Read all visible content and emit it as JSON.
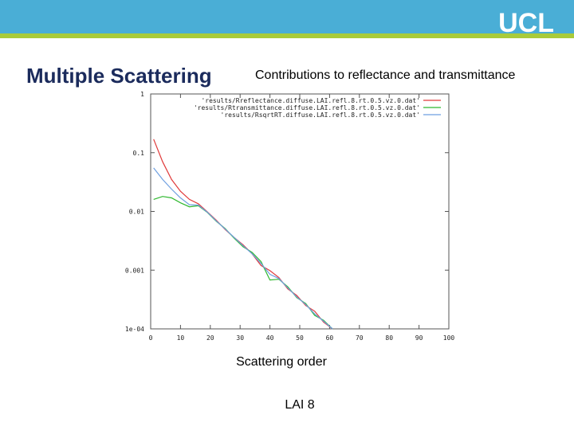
{
  "logo": "UCL",
  "chart_data": {
    "type": "line",
    "title": "Multiple Scattering",
    "subtitle": "Contributions to reflectance and transmittance",
    "x_label": "Scattering order",
    "annotation": "LAI 8",
    "log_y": true,
    "grid": false,
    "legend": "top-right",
    "xlim": [
      0,
      100
    ],
    "xticks": [
      0,
      10,
      20,
      30,
      40,
      50,
      60,
      70,
      80,
      90,
      100
    ],
    "ylim": [
      0.0001,
      1
    ],
    "yticks": [
      {
        "value": 0.0001,
        "label": "1e-04"
      },
      0.001,
      0.01,
      0.1,
      1
    ],
    "x": [
      1,
      4,
      7,
      10,
      13,
      16,
      19,
      22,
      25,
      28,
      31,
      34,
      37,
      40,
      43,
      46,
      49,
      52,
      55,
      58,
      61
    ],
    "series": [
      {
        "name": "'results/Rreflectance.diffuse.LAI.refl.8.rt.0.5.vz.0.dat'",
        "color": "#e03a3a",
        "values": [
          0.17,
          0.07,
          0.035,
          0.022,
          0.016,
          0.0135,
          0.0098,
          0.0071,
          0.0049,
          0.0036,
          0.0027,
          0.0019,
          0.0012,
          0.00098,
          0.00075,
          0.00048,
          0.00037,
          0.00025,
          0.0002,
          0.00013,
          0.0001
        ]
      },
      {
        "name": "'results/Rtransmittance.diffuse.LAI.refl.8.rt.0.5.vz.0.dat'",
        "color": "#2fb82f",
        "values": [
          0.016,
          0.018,
          0.017,
          0.014,
          0.012,
          0.0125,
          0.0096,
          0.0068,
          0.0051,
          0.0035,
          0.0025,
          0.002,
          0.0014,
          0.00068,
          0.0007,
          0.00052,
          0.00034,
          0.00027,
          0.00017,
          0.00014,
          0.0001
        ]
      },
      {
        "name": "'results/RsqrtRT.diffuse.LAI.refl.8.rt.0.5.vz.0.dat'",
        "color": "#6e9fe0",
        "values": [
          0.055,
          0.035,
          0.024,
          0.017,
          0.013,
          0.0128,
          0.0097,
          0.0069,
          0.005,
          0.0036,
          0.0026,
          0.0019,
          0.0013,
          0.00085,
          0.00072,
          0.0005,
          0.00035,
          0.00026,
          0.00018,
          0.000135,
          0.0001
        ]
      }
    ]
  }
}
